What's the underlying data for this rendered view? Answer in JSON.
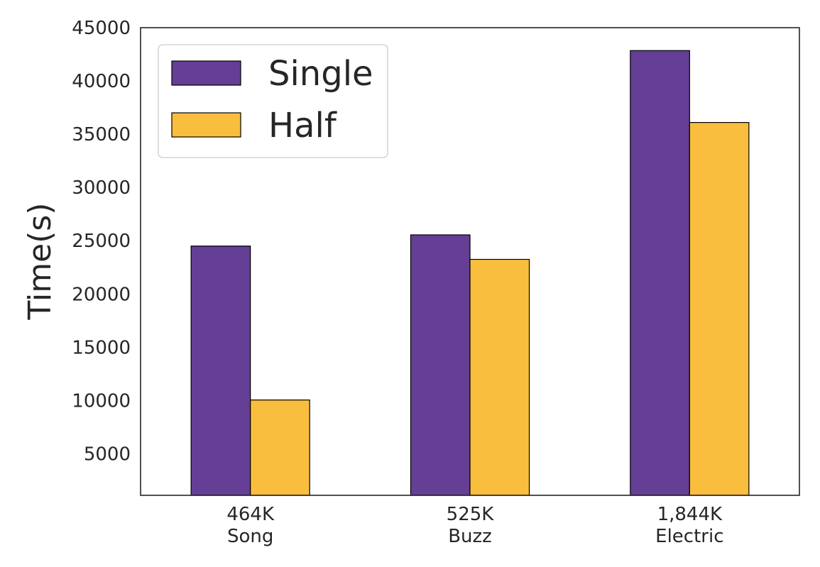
{
  "chart_data": {
    "type": "bar",
    "categories": [
      "464K\nSong",
      "525K\nBuzz",
      "1,844K\nElectric"
    ],
    "series": [
      {
        "name": "Single",
        "color": "#643f95",
        "values": [
          24500,
          25550,
          42850
        ]
      },
      {
        "name": "Half",
        "color": "#f9be3e",
        "values": [
          10050,
          23250,
          36100
        ]
      }
    ],
    "xlabel": "",
    "ylabel": "Time(s)",
    "ylim": [
      1100,
      45000
    ],
    "yticks": [
      5000,
      10000,
      15000,
      20000,
      25000,
      30000,
      35000,
      40000,
      45000
    ],
    "grid": false,
    "legend": "top-left"
  }
}
